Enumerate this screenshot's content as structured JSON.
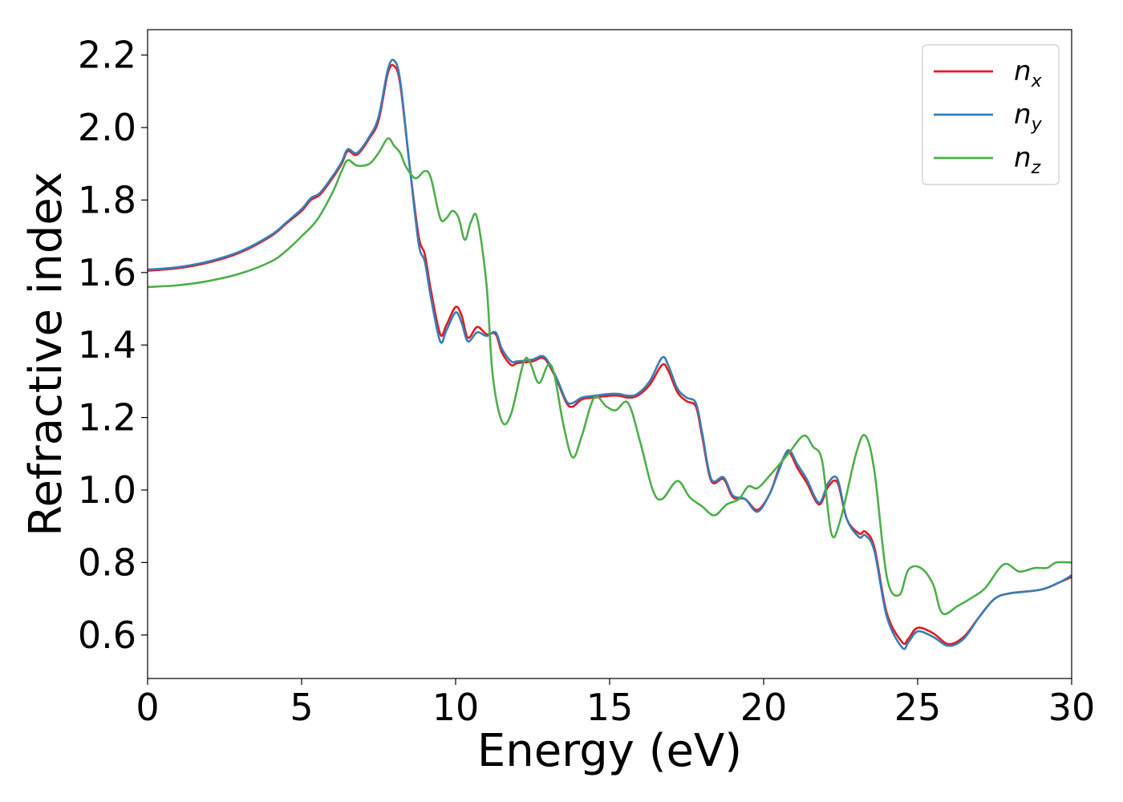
{
  "chart_data": {
    "type": "line",
    "title": "",
    "xlabel": "Energy (eV)",
    "ylabel": "Refractive index",
    "xlim": [
      0,
      30
    ],
    "ylim": [
      0.48,
      2.27
    ],
    "xticks": [
      0,
      5,
      10,
      15,
      20,
      25,
      30
    ],
    "xtick_labels": [
      "0",
      "5",
      "10",
      "15",
      "20",
      "25",
      "30"
    ],
    "yticks": [
      0.6,
      0.8,
      1.0,
      1.2,
      1.4,
      1.6,
      1.8,
      2.0,
      2.2
    ],
    "ytick_labels": [
      "0.6",
      "0.8",
      "1.0",
      "1.2",
      "1.4",
      "1.6",
      "1.8",
      "2.0",
      "2.2"
    ],
    "grid": false,
    "legend_position": "top-right",
    "series": [
      {
        "name_main": "n",
        "name_sub": "x",
        "color": "#e41a1c",
        "points": [
          [
            0,
            1.605
          ],
          [
            1,
            1.612
          ],
          [
            2,
            1.628
          ],
          [
            3,
            1.655
          ],
          [
            4,
            1.7
          ],
          [
            4.5,
            1.735
          ],
          [
            5,
            1.77
          ],
          [
            5.3,
            1.8
          ],
          [
            5.6,
            1.815
          ],
          [
            6,
            1.86
          ],
          [
            6.3,
            1.9
          ],
          [
            6.5,
            1.935
          ],
          [
            6.8,
            1.925
          ],
          [
            7.2,
            1.97
          ],
          [
            7.5,
            2.02
          ],
          [
            7.8,
            2.15
          ],
          [
            8.0,
            2.17
          ],
          [
            8.2,
            2.12
          ],
          [
            8.5,
            1.9
          ],
          [
            8.8,
            1.7
          ],
          [
            9.0,
            1.65
          ],
          [
            9.2,
            1.55
          ],
          [
            9.5,
            1.43
          ],
          [
            9.7,
            1.455
          ],
          [
            10.0,
            1.505
          ],
          [
            10.2,
            1.48
          ],
          [
            10.4,
            1.42
          ],
          [
            10.7,
            1.45
          ],
          [
            11.0,
            1.43
          ],
          [
            11.3,
            1.43
          ],
          [
            11.5,
            1.38
          ],
          [
            11.8,
            1.345
          ],
          [
            12.0,
            1.35
          ],
          [
            12.5,
            1.355
          ],
          [
            12.8,
            1.365
          ],
          [
            13.0,
            1.35
          ],
          [
            13.3,
            1.3
          ],
          [
            13.6,
            1.24
          ],
          [
            13.8,
            1.23
          ],
          [
            14.1,
            1.25
          ],
          [
            14.5,
            1.255
          ],
          [
            15.0,
            1.26
          ],
          [
            15.3,
            1.26
          ],
          [
            15.6,
            1.255
          ],
          [
            15.9,
            1.26
          ],
          [
            16.3,
            1.29
          ],
          [
            16.7,
            1.345
          ],
          [
            16.9,
            1.33
          ],
          [
            17.2,
            1.27
          ],
          [
            17.5,
            1.245
          ],
          [
            17.8,
            1.23
          ],
          [
            18.0,
            1.15
          ],
          [
            18.3,
            1.025
          ],
          [
            18.7,
            1.03
          ],
          [
            19.0,
            0.98
          ],
          [
            19.4,
            0.975
          ],
          [
            19.8,
            0.945
          ],
          [
            20.2,
            0.99
          ],
          [
            20.5,
            1.06
          ],
          [
            20.8,
            1.105
          ],
          [
            21.1,
            1.06
          ],
          [
            21.4,
            1.02
          ],
          [
            21.8,
            0.96
          ],
          [
            22.1,
            1.01
          ],
          [
            22.4,
            1.02
          ],
          [
            22.7,
            0.92
          ],
          [
            23.1,
            0.88
          ],
          [
            23.3,
            0.885
          ],
          [
            23.6,
            0.84
          ],
          [
            24.0,
            0.66
          ],
          [
            24.5,
            0.58
          ],
          [
            24.7,
            0.59
          ],
          [
            25.0,
            0.62
          ],
          [
            25.5,
            0.605
          ],
          [
            26.0,
            0.575
          ],
          [
            26.5,
            0.595
          ],
          [
            27.0,
            0.65
          ],
          [
            27.5,
            0.7
          ],
          [
            28.0,
            0.715
          ],
          [
            29.0,
            0.725
          ],
          [
            29.6,
            0.745
          ],
          [
            30.0,
            0.76
          ]
        ]
      },
      {
        "name_main": "n",
        "name_sub": "y",
        "color": "#377eb8",
        "points": [
          [
            0,
            1.608
          ],
          [
            1,
            1.615
          ],
          [
            2,
            1.631
          ],
          [
            3,
            1.658
          ],
          [
            4,
            1.703
          ],
          [
            4.5,
            1.738
          ],
          [
            5,
            1.775
          ],
          [
            5.3,
            1.805
          ],
          [
            5.6,
            1.82
          ],
          [
            6,
            1.865
          ],
          [
            6.3,
            1.905
          ],
          [
            6.5,
            1.94
          ],
          [
            6.8,
            1.93
          ],
          [
            7.2,
            1.975
          ],
          [
            7.5,
            2.03
          ],
          [
            7.8,
            2.16
          ],
          [
            8.0,
            2.185
          ],
          [
            8.2,
            2.13
          ],
          [
            8.5,
            1.9
          ],
          [
            8.8,
            1.68
          ],
          [
            9.0,
            1.63
          ],
          [
            9.2,
            1.53
          ],
          [
            9.5,
            1.41
          ],
          [
            9.7,
            1.44
          ],
          [
            10.0,
            1.49
          ],
          [
            10.2,
            1.46
          ],
          [
            10.4,
            1.41
          ],
          [
            10.7,
            1.435
          ],
          [
            11.0,
            1.425
          ],
          [
            11.3,
            1.435
          ],
          [
            11.5,
            1.39
          ],
          [
            11.8,
            1.355
          ],
          [
            12.0,
            1.355
          ],
          [
            12.5,
            1.36
          ],
          [
            12.8,
            1.37
          ],
          [
            13.0,
            1.355
          ],
          [
            13.3,
            1.305
          ],
          [
            13.6,
            1.245
          ],
          [
            13.8,
            1.24
          ],
          [
            14.1,
            1.255
          ],
          [
            14.5,
            1.26
          ],
          [
            15.0,
            1.265
          ],
          [
            15.3,
            1.265
          ],
          [
            15.6,
            1.26
          ],
          [
            15.9,
            1.265
          ],
          [
            16.3,
            1.3
          ],
          [
            16.7,
            1.365
          ],
          [
            16.9,
            1.345
          ],
          [
            17.2,
            1.28
          ],
          [
            17.5,
            1.255
          ],
          [
            17.8,
            1.24
          ],
          [
            18.0,
            1.16
          ],
          [
            18.3,
            1.03
          ],
          [
            18.7,
            1.035
          ],
          [
            19.0,
            0.985
          ],
          [
            19.4,
            0.975
          ],
          [
            19.8,
            0.94
          ],
          [
            20.2,
            0.99
          ],
          [
            20.5,
            1.055
          ],
          [
            20.8,
            1.11
          ],
          [
            21.1,
            1.07
          ],
          [
            21.4,
            1.03
          ],
          [
            21.8,
            0.965
          ],
          [
            22.1,
            1.02
          ],
          [
            22.4,
            1.03
          ],
          [
            22.7,
            0.92
          ],
          [
            23.1,
            0.87
          ],
          [
            23.3,
            0.875
          ],
          [
            23.6,
            0.83
          ],
          [
            24.0,
            0.65
          ],
          [
            24.5,
            0.565
          ],
          [
            24.7,
            0.58
          ],
          [
            25.0,
            0.61
          ],
          [
            25.5,
            0.595
          ],
          [
            26.0,
            0.57
          ],
          [
            26.5,
            0.59
          ],
          [
            27.0,
            0.65
          ],
          [
            27.5,
            0.7
          ],
          [
            28.0,
            0.715
          ],
          [
            29.0,
            0.725
          ],
          [
            29.6,
            0.745
          ],
          [
            30.0,
            0.765
          ]
        ]
      },
      {
        "name_main": "n",
        "name_sub": "z",
        "color": "#4daf4a",
        "points": [
          [
            0,
            1.56
          ],
          [
            1,
            1.565
          ],
          [
            2,
            1.577
          ],
          [
            3,
            1.597
          ],
          [
            4,
            1.63
          ],
          [
            4.5,
            1.66
          ],
          [
            5,
            1.7
          ],
          [
            5.5,
            1.745
          ],
          [
            6.0,
            1.82
          ],
          [
            6.3,
            1.88
          ],
          [
            6.5,
            1.91
          ],
          [
            6.8,
            1.895
          ],
          [
            7.2,
            1.9
          ],
          [
            7.5,
            1.93
          ],
          [
            7.8,
            1.97
          ],
          [
            8.0,
            1.95
          ],
          [
            8.2,
            1.93
          ],
          [
            8.4,
            1.89
          ],
          [
            8.7,
            1.86
          ],
          [
            9.0,
            1.88
          ],
          [
            9.2,
            1.86
          ],
          [
            9.5,
            1.75
          ],
          [
            9.7,
            1.75
          ],
          [
            9.9,
            1.77
          ],
          [
            10.1,
            1.75
          ],
          [
            10.3,
            1.69
          ],
          [
            10.5,
            1.74
          ],
          [
            10.7,
            1.75
          ],
          [
            11.0,
            1.57
          ],
          [
            11.2,
            1.32
          ],
          [
            11.5,
            1.19
          ],
          [
            11.8,
            1.21
          ],
          [
            12.2,
            1.35
          ],
          [
            12.4,
            1.355
          ],
          [
            12.7,
            1.295
          ],
          [
            13.0,
            1.345
          ],
          [
            13.2,
            1.32
          ],
          [
            13.5,
            1.18
          ],
          [
            13.8,
            1.09
          ],
          [
            14.1,
            1.15
          ],
          [
            14.5,
            1.255
          ],
          [
            14.9,
            1.23
          ],
          [
            15.2,
            1.22
          ],
          [
            15.6,
            1.24
          ],
          [
            16.0,
            1.13
          ],
          [
            16.4,
            1.0
          ],
          [
            16.7,
            0.975
          ],
          [
            17.2,
            1.025
          ],
          [
            17.6,
            0.98
          ],
          [
            18.0,
            0.955
          ],
          [
            18.4,
            0.93
          ],
          [
            18.8,
            0.96
          ],
          [
            19.2,
            0.975
          ],
          [
            19.5,
            1.01
          ],
          [
            19.8,
            1.005
          ],
          [
            20.2,
            1.04
          ],
          [
            20.8,
            1.1
          ],
          [
            21.3,
            1.15
          ],
          [
            21.6,
            1.12
          ],
          [
            21.9,
            1.08
          ],
          [
            22.2,
            0.88
          ],
          [
            22.5,
            0.92
          ],
          [
            23.0,
            1.1
          ],
          [
            23.3,
            1.15
          ],
          [
            23.6,
            1.05
          ],
          [
            24.0,
            0.76
          ],
          [
            24.4,
            0.71
          ],
          [
            24.7,
            0.78
          ],
          [
            25.1,
            0.785
          ],
          [
            25.5,
            0.74
          ],
          [
            25.8,
            0.66
          ],
          [
            26.3,
            0.68
          ],
          [
            26.8,
            0.705
          ],
          [
            27.2,
            0.73
          ],
          [
            27.8,
            0.795
          ],
          [
            28.3,
            0.775
          ],
          [
            28.8,
            0.785
          ],
          [
            29.2,
            0.785
          ],
          [
            29.5,
            0.8
          ],
          [
            30.0,
            0.8
          ]
        ]
      }
    ]
  }
}
